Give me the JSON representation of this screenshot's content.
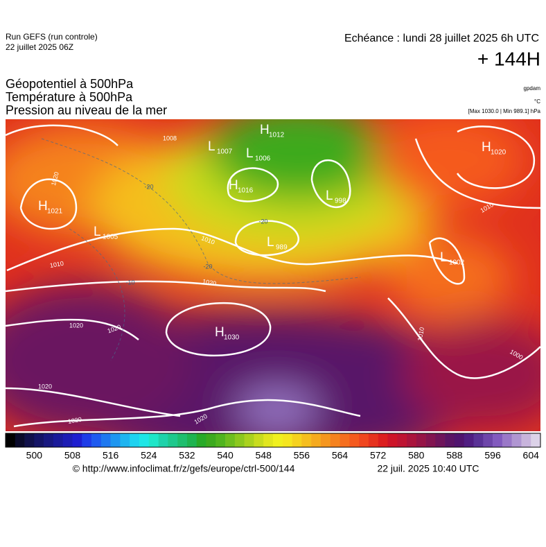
{
  "header": {
    "run": "Run GEFS (run controle)",
    "date": "22 juillet 2025 06Z",
    "echeance": "Echéance : lundi 28 juillet 2025 6h UTC",
    "lead": "+ 144H",
    "titles": [
      "Géopotentiel à 500hPa",
      "Température à 500hPa",
      "Pression au niveau de la mer"
    ],
    "unit_gpdam": "gpdam",
    "unit_temp": "°C",
    "range": "[Max 1030.0 | Min 989.1] hPa"
  },
  "centers": [
    {
      "type": "H",
      "value": 1021
    },
    {
      "type": "L",
      "value": 1005
    },
    {
      "type": "L",
      "value": 1007
    },
    {
      "type": "L",
      "value": 1006
    },
    {
      "type": "H",
      "value": 1012
    },
    {
      "type": "H",
      "value": 1016
    },
    {
      "type": "L",
      "value": 998
    },
    {
      "type": "L",
      "value": 989
    },
    {
      "type": "H",
      "value": 1020
    },
    {
      "type": "L",
      "value": 1002
    },
    {
      "type": "H",
      "value": 1030
    }
  ],
  "isobar_labels": [
    1020,
    1010,
    1010,
    1020,
    1020,
    1020,
    1020,
    1020,
    1020,
    1010,
    1010,
    1000,
    1008
  ],
  "temperature_labels": [
    -20,
    -20,
    -20,
    -10
  ],
  "colorbar": {
    "range": [
      494,
      606
    ],
    "ticks": [
      500,
      508,
      516,
      524,
      532,
      540,
      548,
      556,
      564,
      572,
      580,
      588,
      596,
      604
    ],
    "colors": [
      "#000000",
      "#0a0a2a",
      "#10104a",
      "#141466",
      "#181880",
      "#1a1a9a",
      "#1c1cb4",
      "#1e1ed0",
      "#1e3ce8",
      "#1e5af0",
      "#1e78f0",
      "#1e96f0",
      "#1eb4f0",
      "#1ed2f0",
      "#1ee6e6",
      "#1ee6c8",
      "#1ed2aa",
      "#1ec88c",
      "#1ebe6e",
      "#1eb450",
      "#28aa28",
      "#3caa1e",
      "#50b41e",
      "#6ebe1e",
      "#8cc81e",
      "#aad21e",
      "#c8dc1e",
      "#e1e61e",
      "#f0f01e",
      "#f5e61e",
      "#f5d21e",
      "#f5be1e",
      "#f5aa1e",
      "#f5961e",
      "#f5821e",
      "#f56e1e",
      "#f55a1e",
      "#f0461e",
      "#e6321e",
      "#dc1e1e",
      "#cd1428",
      "#be1432",
      "#aa143c",
      "#961446",
      "#821450",
      "#6e145a",
      "#5a1464",
      "#50146e",
      "#501e82",
      "#5a3296",
      "#6e46aa",
      "#825abe",
      "#9a78c8",
      "#b096d2",
      "#c8b4dc",
      "#dcd2e8"
    ]
  },
  "footer": {
    "source": "© http://www.infoclimat.fr/z/gefs/europe/ctrl-500/144",
    "generated": "22 juil. 2025 10:40 UTC"
  }
}
